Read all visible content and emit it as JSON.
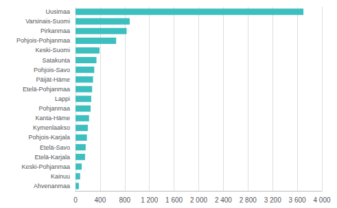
{
  "chart_data": {
    "type": "bar",
    "orientation": "horizontal",
    "categories": [
      "Ahvenanmaa",
      "Kainuu",
      "Keski-Pohjanmaa",
      "Etelä-Karjala",
      "Etelä-Savo",
      "Pohjois-Karjala",
      "Kymenlaakso",
      "Kanta-Häme",
      "Pohjanmaa",
      "Lappi",
      "Etelä-Pohjanmaa",
      "Päijät-Häme",
      "Pohjois-Savo",
      "Satakunta",
      "Keski-Suomi",
      "Pohjois-Pohjanmaa",
      "Pirkanmaa",
      "Varsinais-Suomi",
      "Uusimaa"
    ],
    "values": [
      55,
      75,
      100,
      155,
      165,
      185,
      200,
      220,
      245,
      255,
      270,
      285,
      305,
      340,
      390,
      660,
      830,
      880,
      3700
    ],
    "color": "#3dbfbf",
    "xlim": [
      0,
      4000
    ],
    "xticks": [
      0,
      400,
      800,
      {
        "value": 1200,
        "label": "1 200"
      },
      {
        "value": 1600,
        "label": "1 600"
      },
      {
        "value": 2000,
        "label": "2 000"
      },
      {
        "value": 2400,
        "label": "2 400"
      },
      {
        "value": 2800,
        "label": "2 800"
      },
      {
        "value": 3200,
        "label": "3 200"
      },
      {
        "value": 3600,
        "label": "3 600"
      },
      {
        "value": 4000,
        "label": "4 000"
      }
    ],
    "grid": true
  }
}
